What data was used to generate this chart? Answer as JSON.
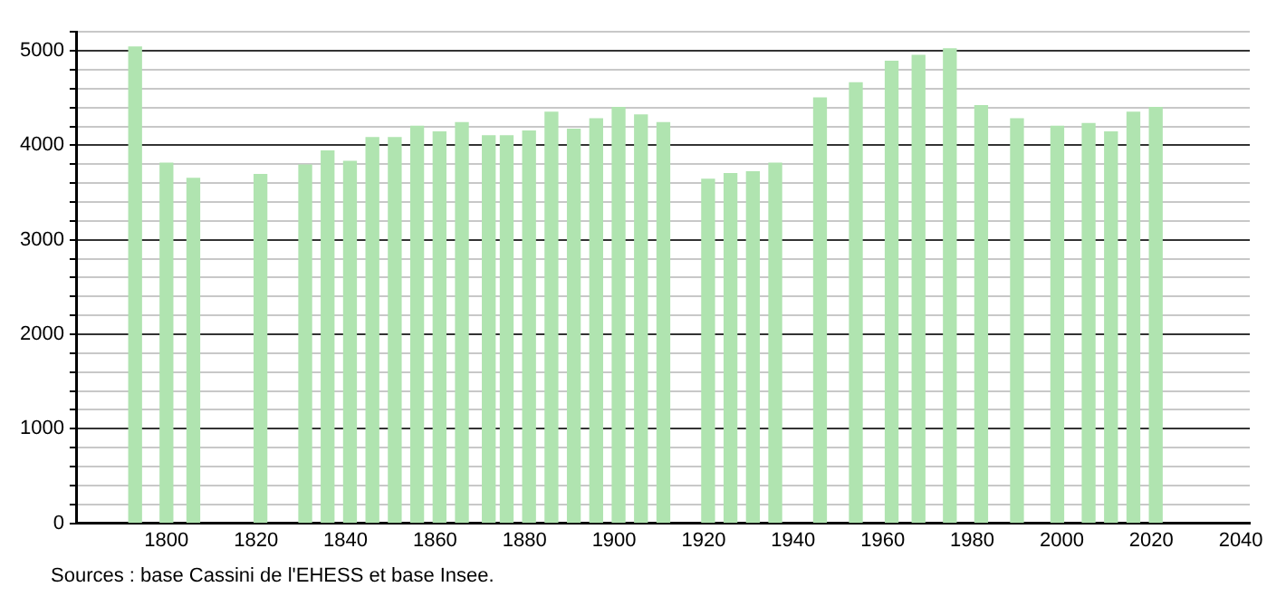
{
  "chart_data": {
    "type": "bar",
    "x": [
      1793,
      1800,
      1806,
      1821,
      1831,
      1836,
      1841,
      1846,
      1851,
      1856,
      1861,
      1866,
      1872,
      1876,
      1881,
      1886,
      1891,
      1896,
      1901,
      1906,
      1911,
      1921,
      1926,
      1931,
      1936,
      1946,
      1954,
      1962,
      1968,
      1975,
      1982,
      1990,
      1999,
      2006,
      2011,
      2016,
      2021
    ],
    "values": [
      5040,
      3810,
      3650,
      3690,
      3790,
      3940,
      3830,
      4080,
      4080,
      4200,
      4140,
      4240,
      4100,
      4100,
      4150,
      4350,
      4170,
      4280,
      4400,
      4320,
      4240,
      3640,
      3700,
      3720,
      3810,
      4500,
      4660,
      4890,
      4950,
      5020,
      4420,
      4280,
      4200,
      4230,
      4140,
      4350,
      4400
    ],
    "color": "#b0e4b0",
    "xlim": [
      1780,
      2042
    ],
    "xticks": [
      1800,
      1820,
      1840,
      1860,
      1880,
      1900,
      1920,
      1940,
      1960,
      1980,
      2000,
      2020,
      2040
    ],
    "ylim": [
      0,
      5200
    ],
    "yticks": [
      0,
      {
        "value": 200,
        "label": null
      },
      {
        "value": 400,
        "label": null
      },
      {
        "value": 600,
        "label": null
      },
      {
        "value": 800,
        "label": null
      },
      1000,
      {
        "value": 1200,
        "label": null
      },
      {
        "value": 1400,
        "label": null
      },
      {
        "value": 1600,
        "label": null
      },
      {
        "value": 1800,
        "label": null
      },
      2000,
      {
        "value": 2200,
        "label": null
      },
      {
        "value": 2400,
        "label": null
      },
      {
        "value": 2600,
        "label": null
      },
      {
        "value": 2800,
        "label": null
      },
      3000,
      {
        "value": 3200,
        "label": null
      },
      {
        "value": 3400,
        "label": null
      },
      {
        "value": 3600,
        "label": null
      },
      {
        "value": 3800,
        "label": null
      },
      4000,
      {
        "value": 4200,
        "label": null
      },
      {
        "value": 4400,
        "label": null
      },
      {
        "value": 4600,
        "label": null
      },
      {
        "value": 4800,
        "label": null
      },
      5000,
      {
        "value": 5200,
        "label": null
      }
    ],
    "grid": "y",
    "legend": false,
    "annotations": [
      "Sources : base Cassini de l'EHESS et base Insee."
    ]
  }
}
